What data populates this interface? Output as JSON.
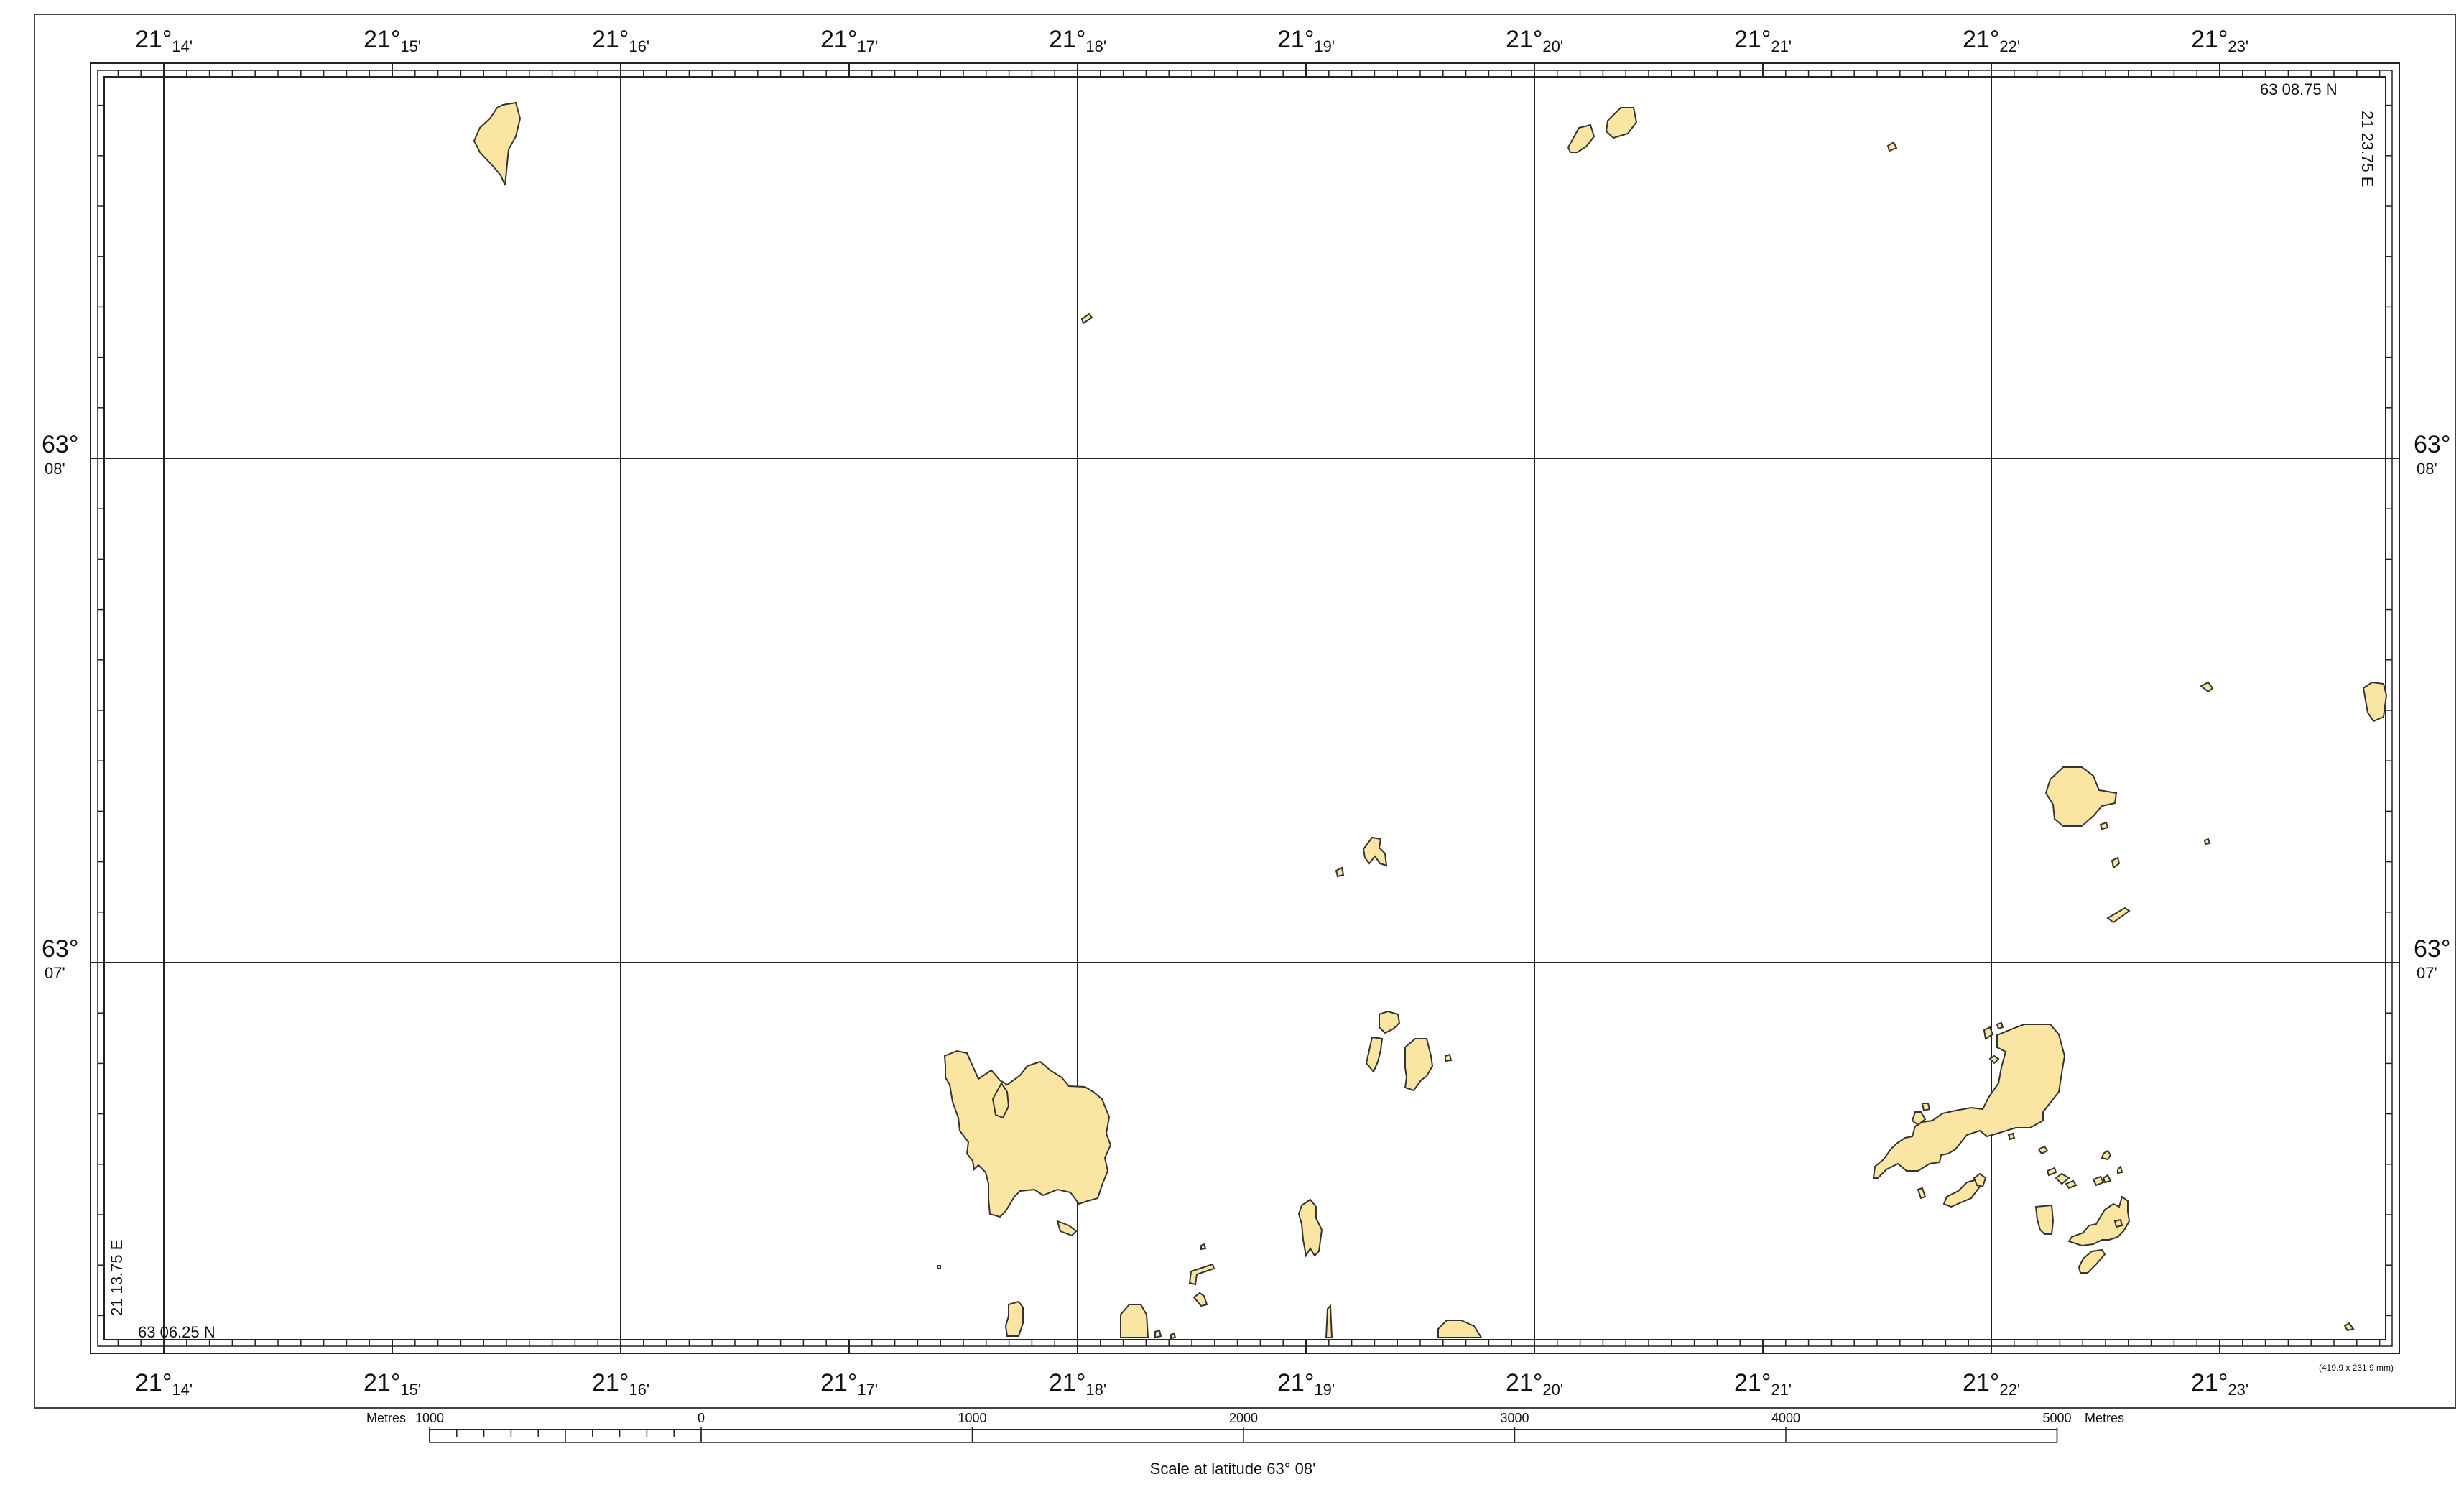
{
  "map": {
    "longitude_ticks": [
      {
        "deg": "21°",
        "min": "14'"
      },
      {
        "deg": "21°",
        "min": "15'"
      },
      {
        "deg": "21°",
        "min": "16'"
      },
      {
        "deg": "21°",
        "min": "17'"
      },
      {
        "deg": "21°",
        "min": "18'"
      },
      {
        "deg": "21°",
        "min": "19'"
      },
      {
        "deg": "21°",
        "min": "20'"
      },
      {
        "deg": "21°",
        "min": "21'"
      },
      {
        "deg": "21°",
        "min": "22'"
      },
      {
        "deg": "21°",
        "min": "23'"
      }
    ],
    "latitude_ticks": [
      {
        "deg": "63°",
        "min": "08'"
      },
      {
        "deg": "63°",
        "min": "07'"
      }
    ],
    "corner_labels": {
      "top_right_lat": "63 08.75 N",
      "top_right_lon": "21 23.75 E",
      "bottom_left_lat": "63 06.25 N",
      "bottom_left_lon": "21 13.75 E"
    },
    "sheet_size": "(419.9 x 231.9 mm)",
    "land_color": "#FBE5A2",
    "line_color": "#222222"
  },
  "scale_bar": {
    "unit_left": "Metres",
    "unit_right": "Metres",
    "labels": [
      "1000",
      "0",
      "1000",
      "2000",
      "3000",
      "4000",
      "5000"
    ],
    "caption": "Scale at latitude 63° 08'"
  }
}
